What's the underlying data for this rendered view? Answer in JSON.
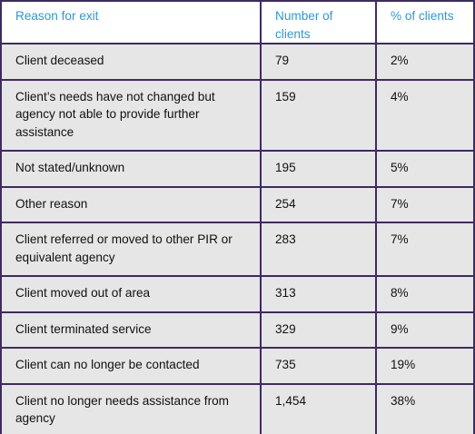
{
  "table": {
    "headers": [
      "Reason for exit",
      "Number of clients",
      "% of clients"
    ],
    "rows": [
      [
        "Client deceased",
        "79",
        "2%"
      ],
      [
        "Client’s needs have not changed but agency not able to provide further assistance",
        "159",
        "4%"
      ],
      [
        "Not stated/unknown",
        "195",
        "5%"
      ],
      [
        "Other reason",
        "254",
        "7%"
      ],
      [
        "Client referred or moved to other PIR or equivalent agency",
        "283",
        "7%"
      ],
      [
        "Client moved out of area",
        "313",
        "8%"
      ],
      [
        "Client terminated service",
        "329",
        "9%"
      ],
      [
        "Client can no longer be contacted",
        "735",
        "19%"
      ],
      [
        "Client no longer needs assistance from agency",
        "1,454",
        "38%"
      ]
    ]
  },
  "colors": {
    "header_text": "#2e98d2",
    "border": "#3d2b63",
    "row_background": "#e6e6e6",
    "header_background": "#ffffff"
  }
}
